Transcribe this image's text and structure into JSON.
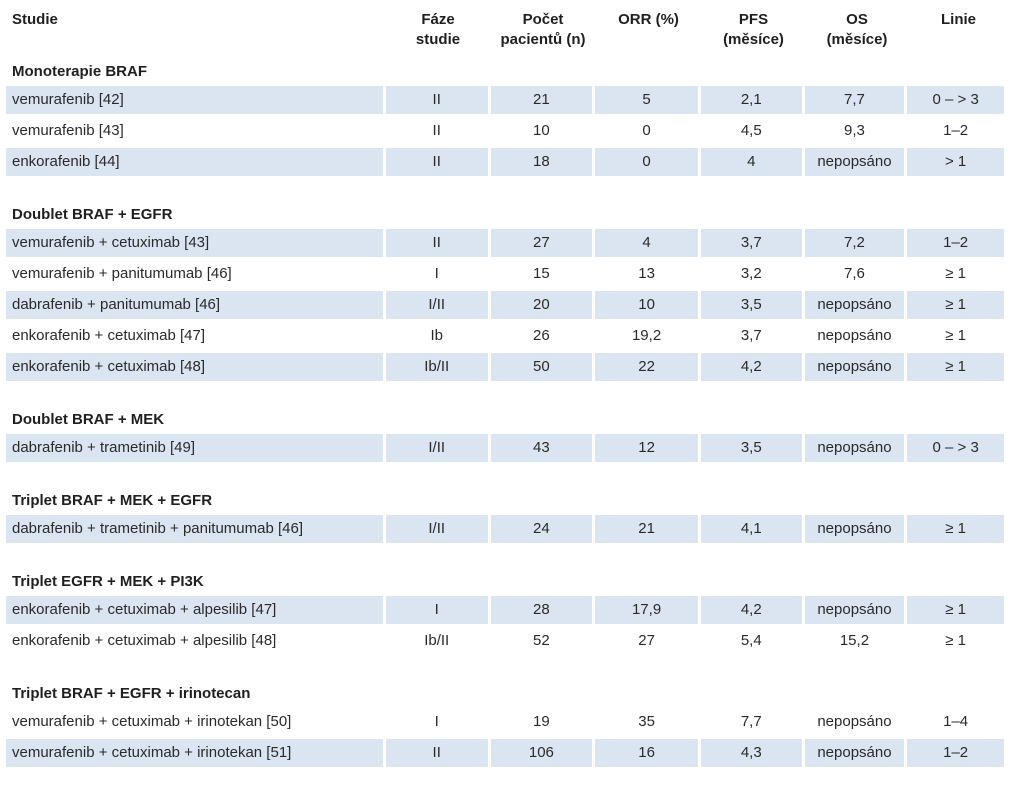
{
  "headers": [
    {
      "line1": "Studie",
      "line2": ""
    },
    {
      "line1": "Fáze",
      "line2": "studie"
    },
    {
      "line1": "Počet",
      "line2": "pacientů (n)"
    },
    {
      "line1": "ORR (%)",
      "line2": ""
    },
    {
      "line1": "PFS",
      "line2": "(měsíce)"
    },
    {
      "line1": "OS",
      "line2": "(měsíce)"
    },
    {
      "line1": "Linie",
      "line2": ""
    }
  ],
  "sections": [
    {
      "title": "Monoterapie BRAF",
      "rows": [
        {
          "study": "vemurafenib [42]",
          "phase": "II",
          "n": "21",
          "orr": "5",
          "pfs": "2,1",
          "os": "7,7",
          "line": "0 – > 3",
          "shaded": true
        },
        {
          "study": "vemurafenib [43]",
          "phase": "II",
          "n": "10",
          "orr": "0",
          "pfs": "4,5",
          "os": "9,3",
          "line": "1–2",
          "shaded": false
        },
        {
          "study": "enkorafenib [44]",
          "phase": "II",
          "n": "18",
          "orr": "0",
          "pfs": "4",
          "os": "nepopsáno",
          "line": "> 1",
          "shaded": true
        }
      ]
    },
    {
      "title": "Doublet BRAF + EGFR",
      "rows": [
        {
          "study": "vemurafenib + cetuximab [43]",
          "phase": "II",
          "n": "27",
          "orr": "4",
          "pfs": "3,7",
          "os": "7,2",
          "line": "1–2",
          "shaded": true
        },
        {
          "study": "vemurafenib + panitumumab [46]",
          "phase": "I",
          "n": "15",
          "orr": "13",
          "pfs": "3,2",
          "os": "7,6",
          "line": "≥ 1",
          "shaded": false
        },
        {
          "study": "dabrafenib + panitumumab [46]",
          "phase": "I/II",
          "n": "20",
          "orr": "10",
          "pfs": "3,5",
          "os": "nepopsáno",
          "line": "≥ 1",
          "shaded": true
        },
        {
          "study": "enkorafenib + cetuximab [47]",
          "phase": "Ib",
          "n": "26",
          "orr": "19,2",
          "pfs": "3,7",
          "os": "nepopsáno",
          "line": "≥ 1",
          "shaded": false
        },
        {
          "study": "enkorafenib + cetuximab [48]",
          "phase": "Ib/II",
          "n": "50",
          "orr": "22",
          "pfs": "4,2",
          "os": "nepopsáno",
          "line": "≥ 1",
          "shaded": true
        }
      ]
    },
    {
      "title": "Doublet BRAF + MEK",
      "rows": [
        {
          "study": "dabrafenib + trametinib [49]",
          "phase": "I/II",
          "n": "43",
          "orr": "12",
          "pfs": "3,5",
          "os": "nepopsáno",
          "line": "0 – > 3",
          "shaded": true
        }
      ]
    },
    {
      "title": "Triplet BRAF + MEK + EGFR",
      "rows": [
        {
          "study": "dabrafenib + trametinib + panitumumab [46]",
          "phase": "I/II",
          "n": "24",
          "orr": "21",
          "pfs": "4,1",
          "os": "nepopsáno",
          "line": "≥ 1",
          "shaded": true
        }
      ]
    },
    {
      "title": "Triplet EGFR + MEK + PI3K",
      "rows": [
        {
          "study": "enkorafenib + cetuximab + alpesilib [47]",
          "phase": "I",
          "n": "28",
          "orr": "17,9",
          "pfs": "4,2",
          "os": "nepopsáno",
          "line": "≥ 1",
          "shaded": true
        },
        {
          "study": "enkorafenib + cetuximab + alpesilib [48]",
          "phase": "Ib/II",
          "n": "52",
          "orr": "27",
          "pfs": "5,4",
          "os": "15,2",
          "line": "≥ 1",
          "shaded": false
        }
      ]
    },
    {
      "title": "Triplet BRAF + EGFR + irinotecan",
      "rows": [
        {
          "study": "vemurafenib + cetuximab + irinotekan [50]",
          "phase": "I",
          "n": "19",
          "orr": "35",
          "pfs": "7,7",
          "os": "nepopsáno",
          "line": "1–4",
          "shaded": false
        },
        {
          "study": "vemurafenib + cetuximab + irinotekan [51]",
          "phase": "II",
          "n": "106",
          "orr": "16",
          "pfs": "4,3",
          "os": "nepopsáno",
          "line": "1–2",
          "shaded": true
        }
      ]
    }
  ]
}
